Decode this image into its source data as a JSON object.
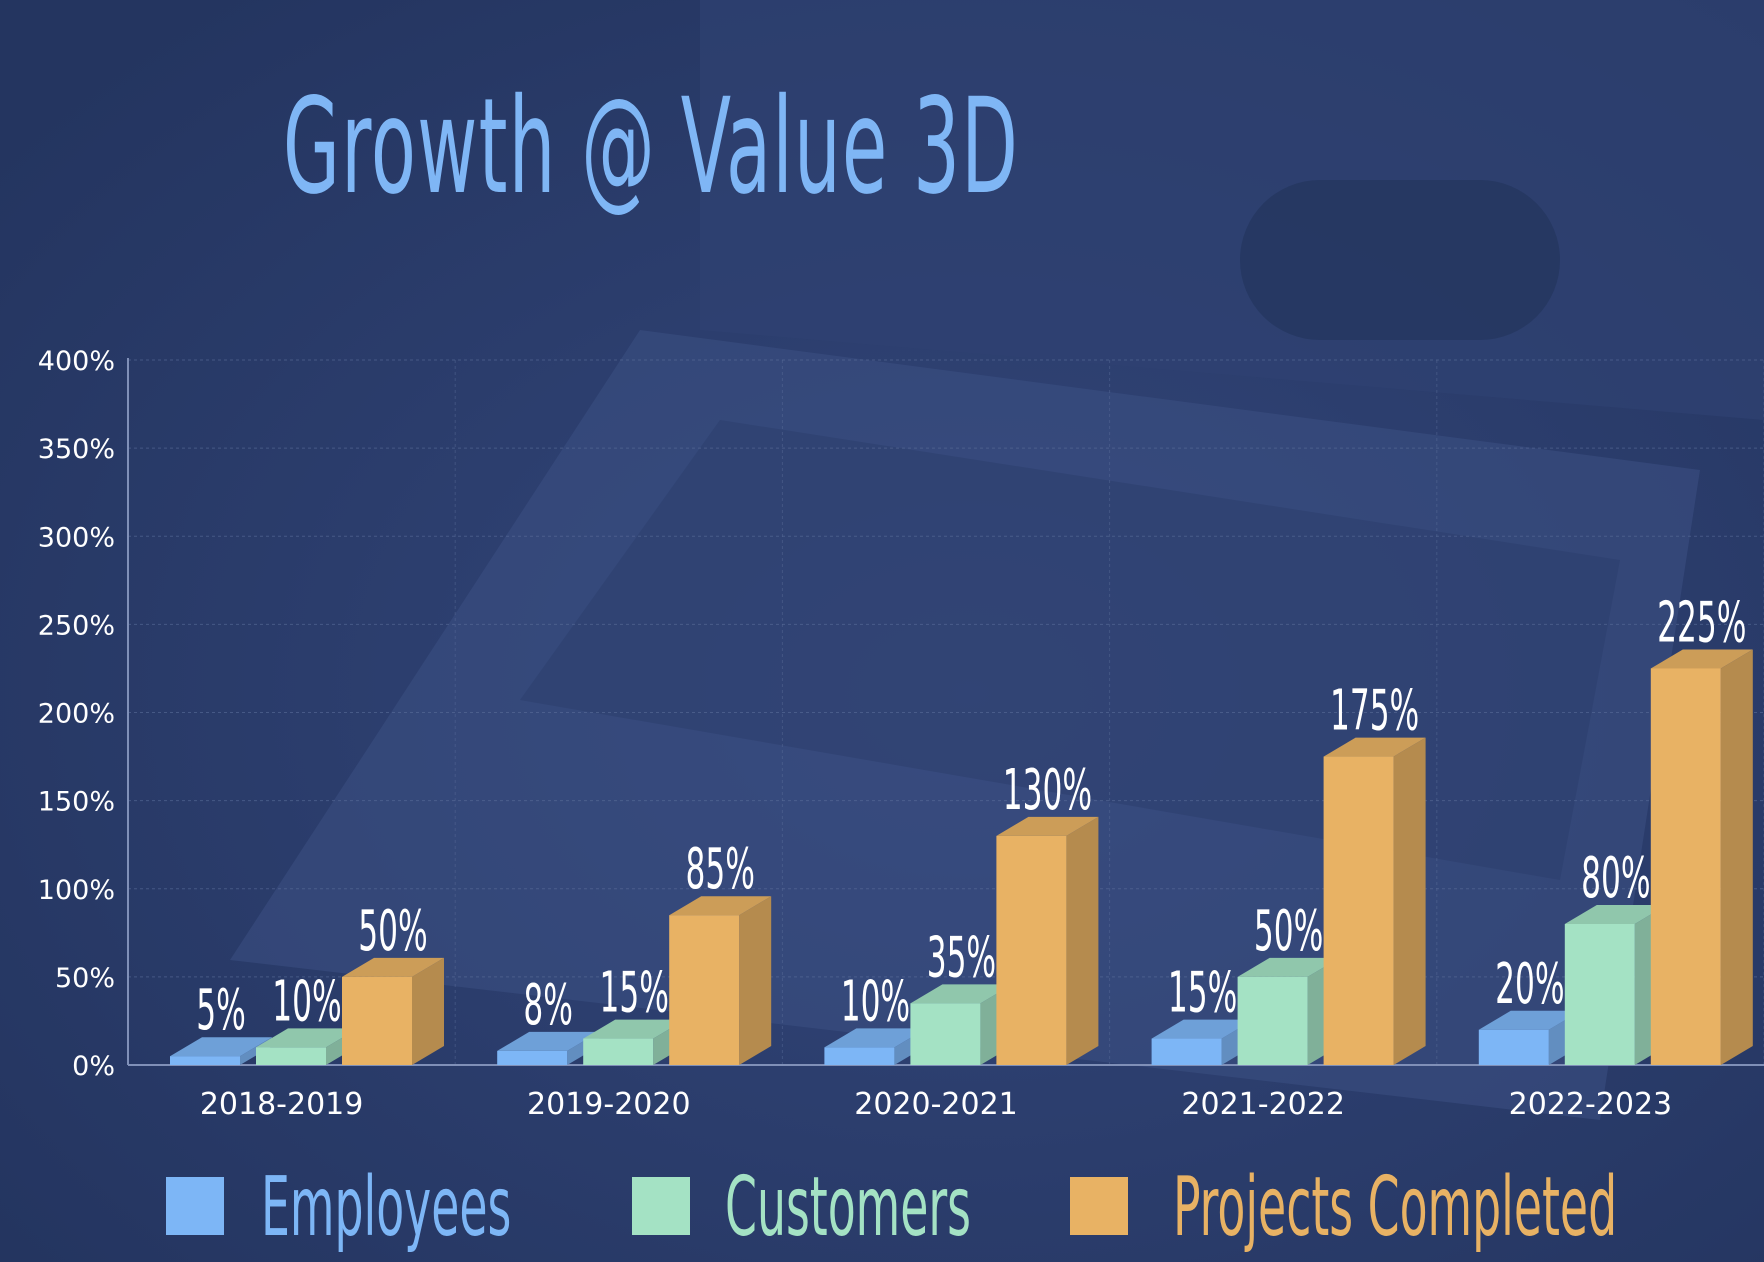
{
  "title": "Growth @ Value 3D",
  "colors": {
    "employees": "#7db6f6",
    "customers": "#a4e2c4",
    "projects": "#e8b264",
    "axis_text": "#ffffff"
  },
  "legend": {
    "employees": "Employees",
    "customers": "Customers",
    "projects": "Projects Completed"
  },
  "chart_data": {
    "type": "bar",
    "title": "Growth @ Value 3D",
    "categories": [
      "2018-2019",
      "2019-2020",
      "2020-2021",
      "2021-2022",
      "2022-2023"
    ],
    "series": [
      {
        "name": "Employees",
        "values": [
          5,
          8,
          10,
          15,
          20
        ],
        "labels": [
          "5%",
          "8%",
          "10%",
          "15%",
          "20%"
        ],
        "color": "#7db6f6"
      },
      {
        "name": "Customers",
        "values": [
          10,
          15,
          35,
          50,
          80
        ],
        "labels": [
          "10%",
          "15%",
          "35%",
          "50%",
          "80%"
        ],
        "color": "#a4e2c4"
      },
      {
        "name": "Projects Completed",
        "values": [
          50,
          85,
          130,
          175,
          225
        ],
        "labels": [
          "50%",
          "85%",
          "130%",
          "175%",
          "225%"
        ],
        "color": "#e8b264"
      }
    ],
    "ylim": [
      0,
      400
    ],
    "yticks": [
      "0%",
      "50%",
      "100%",
      "150%",
      "200%",
      "250%",
      "300%",
      "350%",
      "400%"
    ],
    "grid": true,
    "legend_position": "bottom"
  }
}
